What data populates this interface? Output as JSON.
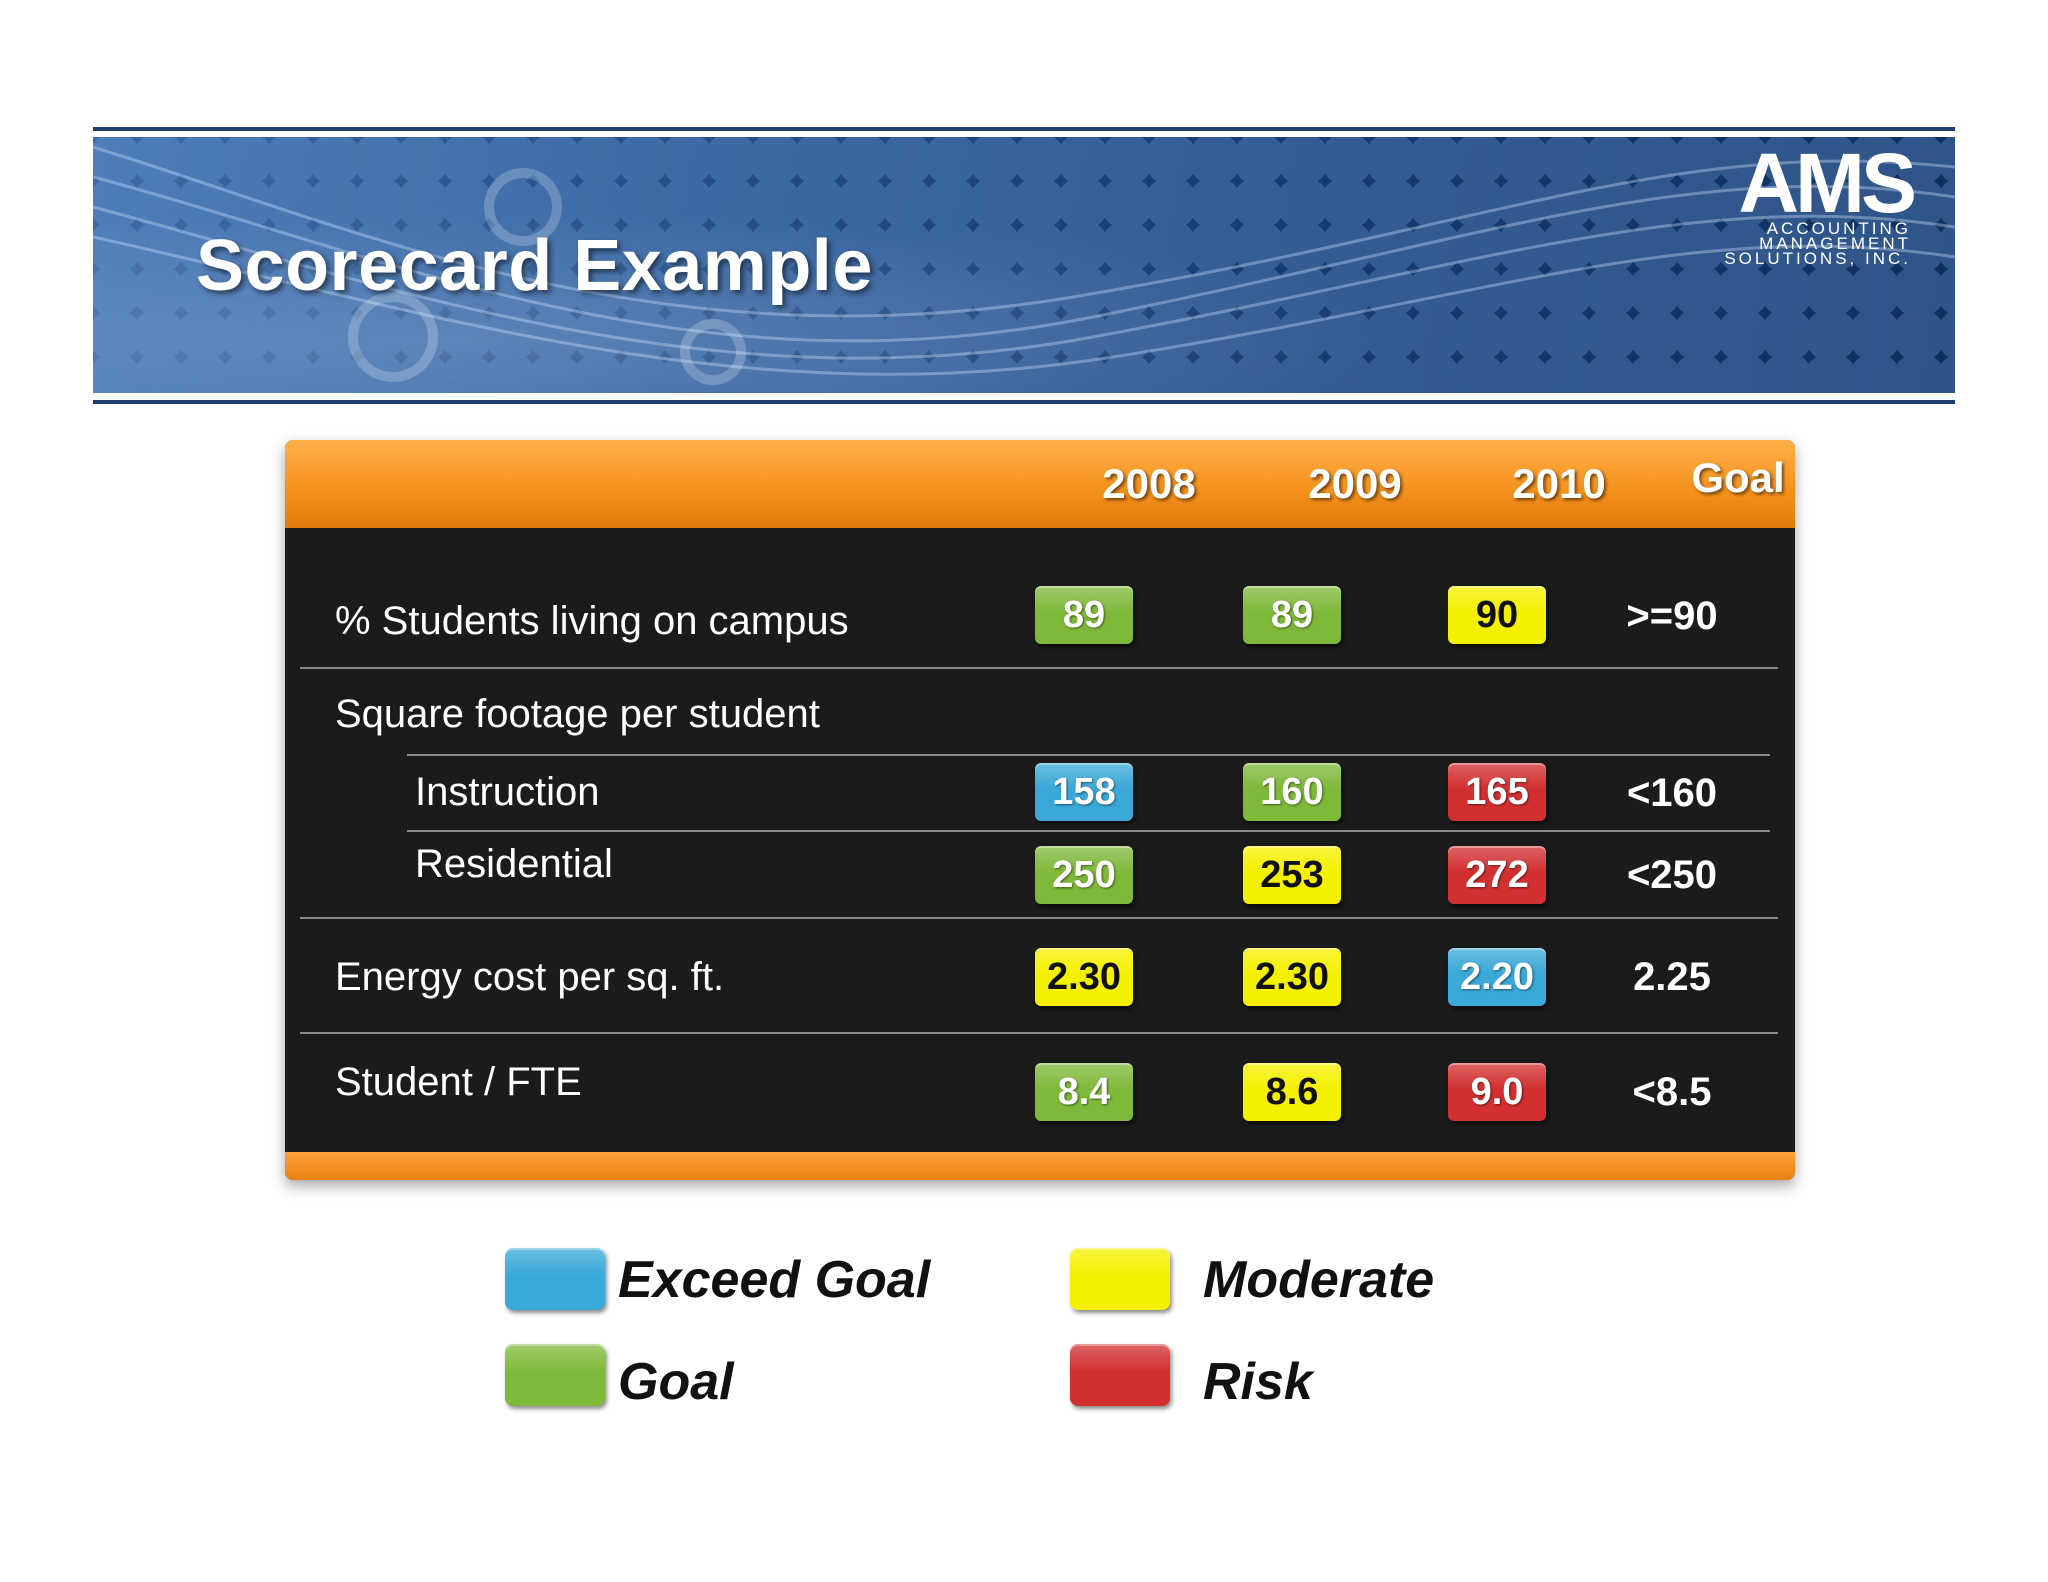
{
  "slide": {
    "title": "Scorecard Example"
  },
  "logo": {
    "mark": "AMS",
    "line1": "ACCOUNTING",
    "line2": "MANAGEMENT",
    "line3": "SOLUTIONS, INC."
  },
  "colors": {
    "exceed": "#3aa8d8",
    "goal": "#7fb93a",
    "moderate": "#f5f000",
    "risk": "#d23030",
    "header_orange": "#f6921e",
    "banner_blue": "#1b4682"
  },
  "table": {
    "columns": [
      "2008",
      "2009",
      "2010",
      "Goal"
    ],
    "rows": [
      {
        "label": "% Students living on campus",
        "values": [
          "89",
          "89",
          "90"
        ],
        "status": [
          "goal",
          "goal",
          "moderate"
        ],
        "goal": ">=90"
      },
      {
        "label": "Square footage per student"
      },
      {
        "label": "Instruction",
        "values": [
          "158",
          "160",
          "165"
        ],
        "status": [
          "exceed",
          "goal",
          "risk"
        ],
        "goal": "<160"
      },
      {
        "label": "Residential",
        "values": [
          "250",
          "253",
          "272"
        ],
        "status": [
          "goal",
          "moderate",
          "risk"
        ],
        "goal": "<250"
      },
      {
        "label": "Energy cost per sq. ft.",
        "values": [
          "2.30",
          "2.30",
          "2.20"
        ],
        "status": [
          "moderate",
          "moderate",
          "exceed"
        ],
        "goal": "2.25"
      },
      {
        "label": "Student / FTE",
        "values": [
          "8.4",
          "8.6",
          "9.0"
        ],
        "status": [
          "goal",
          "moderate",
          "risk"
        ],
        "goal": "<8.5"
      }
    ]
  },
  "legend": [
    {
      "label": "Exceed Goal",
      "status": "exceed"
    },
    {
      "label": "Moderate",
      "status": "moderate"
    },
    {
      "label": "Goal",
      "status": "goal"
    },
    {
      "label": "Risk",
      "status": "risk"
    }
  ]
}
